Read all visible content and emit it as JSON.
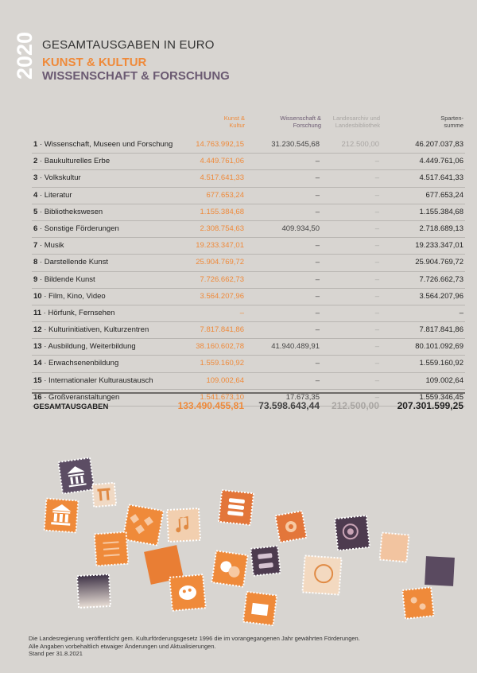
{
  "header": {
    "year": "2020",
    "title": "GESAMTAUSGABEN IN EURO",
    "subtitle_1": "KUNST & KULTUR",
    "subtitle_2": "WISSENSCHAFT & FORSCHUNG"
  },
  "columns": {
    "kunst_kultur": [
      "Kunst &",
      "Kultur"
    ],
    "wissenschaft": [
      "Wissenschaft &",
      "Forschung"
    ],
    "landesarchiv": [
      "Landesarchiv und",
      "Landesbibliothek"
    ],
    "sparten": [
      "Sparten-",
      "summe"
    ]
  },
  "rows": [
    {
      "num": "1",
      "label": "Wissenschaft, Museen und Forschung",
      "kk": "14.763.992,15",
      "wf": "31.230.545,68",
      "la": "212.500,00",
      "ss": "46.207.037,83"
    },
    {
      "num": "2",
      "label": "Baukulturelles Erbe",
      "kk": "4.449.761,06",
      "wf": "–",
      "la": "–",
      "ss": "4.449.761,06"
    },
    {
      "num": "3",
      "label": "Volkskultur",
      "kk": "4.517.641,33",
      "wf": "–",
      "la": "–",
      "ss": "4.517.641,33"
    },
    {
      "num": "4",
      "label": "Literatur",
      "kk": "677.653,24",
      "wf": "–",
      "la": "–",
      "ss": "677.653,24"
    },
    {
      "num": "5",
      "label": "Bibliothekswesen",
      "kk": "1.155.384,68",
      "wf": "–",
      "la": "–",
      "ss": "1.155.384,68"
    },
    {
      "num": "6",
      "label": "Sonstige Förderungen",
      "kk": "2.308.754,63",
      "wf": "409.934,50",
      "la": "–",
      "ss": "2.718.689,13"
    },
    {
      "num": "7",
      "label": "Musik",
      "kk": "19.233.347,01",
      "wf": "–",
      "la": "–",
      "ss": "19.233.347,01"
    },
    {
      "num": "8",
      "label": "Darstellende Kunst",
      "kk": "25.904.769,72",
      "wf": "–",
      "la": "–",
      "ss": "25.904.769,72"
    },
    {
      "num": "9",
      "label": "Bildende Kunst",
      "kk": "7.726.662,73",
      "wf": "–",
      "la": "–",
      "ss": "7.726.662,73"
    },
    {
      "num": "10",
      "label": "Film, Kino, Video",
      "kk": "3.564.207,96",
      "wf": "–",
      "la": "–",
      "ss": "3.564.207,96"
    },
    {
      "num": "11",
      "label": "Hörfunk, Fernsehen",
      "kk": "–",
      "wf": "–",
      "la": "–",
      "ss": "–"
    },
    {
      "num": "12",
      "label": "Kulturinitiativen, Kulturzentren",
      "kk": "7.817.841,86",
      "wf": "–",
      "la": "–",
      "ss": "7.817.841,86"
    },
    {
      "num": "13",
      "label": "Ausbildung, Weiterbildung",
      "kk": "38.160.602,78",
      "wf": "41.940.489,91",
      "la": "–",
      "ss": "80.101.092,69"
    },
    {
      "num": "14",
      "label": "Erwachsenenbildung",
      "kk": "1.559.160,92",
      "wf": "–",
      "la": "–",
      "ss": "1.559.160,92"
    },
    {
      "num": "15",
      "label": "Internationaler Kulturaustausch",
      "kk": "109.002,64",
      "wf": "–",
      "la": "–",
      "ss": "109.002,64"
    },
    {
      "num": "16",
      "label": "Großveranstaltungen",
      "kk": "1.541.673,10",
      "wf": "17.673,35",
      "la": "–",
      "ss": "1.559.346,45"
    }
  ],
  "total": {
    "label": "GESAMTAUSGABEN",
    "kk": "133.490.455,81",
    "wf": "73.598.643,44",
    "la": "212.500,00",
    "ss": "207.301.599,25"
  },
  "footer": [
    "Die Landesregierung veröffentlicht gem. Kulturförderungsgesetz 1996 die im vorangegangenen Jahr gewährten Förderungen.",
    "Alle Angaben vorbehaltlich etwaiger Änderungen und Aktualisierungen.",
    "Stand per 31.8.2021"
  ],
  "colors": {
    "orange": "#ef8a3a",
    "purple": "#6b5a72",
    "grey": "#a9a6a3",
    "background": "#d8d5d1"
  },
  "icons": [
    "museum-icon",
    "columns-icon",
    "building-icon",
    "pattern-icon",
    "music-icon",
    "film-icon",
    "drama-masks-icon",
    "palette-icon",
    "head-icon",
    "ornament-icon"
  ]
}
